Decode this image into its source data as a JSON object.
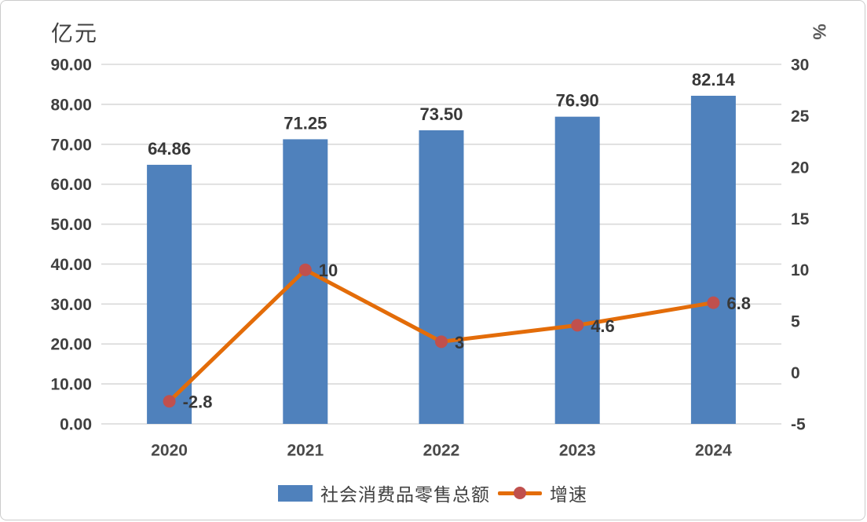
{
  "colors": {
    "bar": "#4F81BC",
    "line": "#E36C09",
    "marker": "#C0504D",
    "grid": "#D9D9D9",
    "tick_text": "#404040",
    "category_text": "#4A4A4A",
    "data_label_text": "#383838",
    "frame_border": "#CBCBCB"
  },
  "chart_data": {
    "type": "combo",
    "categories": [
      "2020",
      "2021",
      "2022",
      "2023",
      "2024"
    ],
    "series": [
      {
        "name": "社会消费品零售总额",
        "type": "bar",
        "axis": "left",
        "values": [
          64.86,
          71.25,
          73.5,
          76.9,
          82.14
        ],
        "labels": [
          "64.86",
          "71.25",
          "73.50",
          "76.90",
          "82.14"
        ],
        "color": "#4F81BC"
      },
      {
        "name": "增速",
        "type": "line",
        "axis": "right",
        "values": [
          -2.8,
          10,
          3,
          4.6,
          6.8
        ],
        "labels": [
          "-2.8",
          "10",
          "3",
          "4.6",
          "6.8"
        ],
        "line_color": "#E36C09",
        "marker_color": "#C0504D"
      }
    ],
    "left_axis": {
      "title": "亿元",
      "min": 0,
      "max": 90,
      "step": 10,
      "tick_labels": [
        "0.00",
        "10.00",
        "20.00",
        "30.00",
        "40.00",
        "50.00",
        "60.00",
        "70.00",
        "80.00",
        "90.00"
      ]
    },
    "right_axis": {
      "title": "%",
      "min": -5,
      "max": 30,
      "step": 5,
      "tick_labels": [
        "-5",
        "0",
        "5",
        "10",
        "15",
        "20",
        "25",
        "30"
      ]
    },
    "grid": true,
    "legend_position": "bottom"
  }
}
